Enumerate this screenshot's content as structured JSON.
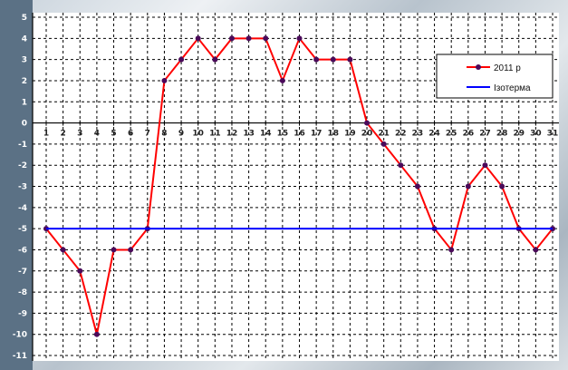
{
  "chart_data": {
    "type": "line",
    "title": "",
    "xlabel": "",
    "ylabel": "",
    "categories": [
      "1",
      "2",
      "3",
      "4",
      "5",
      "6",
      "7",
      "8",
      "9",
      "10",
      "11",
      "12",
      "13",
      "14",
      "15",
      "16",
      "17",
      "18",
      "19",
      "20",
      "21",
      "22",
      "23",
      "24",
      "25",
      "26",
      "27",
      "28",
      "29",
      "30",
      "31"
    ],
    "ylim": [
      -11,
      5
    ],
    "yticks": [
      -11,
      -10,
      -9,
      -8,
      -7,
      -6,
      -5,
      -4,
      -3,
      -2,
      -1,
      0,
      1,
      2,
      3,
      4,
      5
    ],
    "grid": true,
    "legend_position": "top-right",
    "series": [
      {
        "name": "2011 р",
        "color": "#ff0000",
        "marker_color": "#4b0a5a",
        "values": [
          -5,
          -6,
          -7,
          -10,
          -6,
          -6,
          -5,
          2,
          3,
          4,
          3,
          4,
          4,
          4,
          2,
          4,
          3,
          3,
          3,
          0,
          -1,
          -2,
          -3,
          -5,
          -6,
          -3,
          -2,
          -3,
          -5,
          -6,
          -5
        ]
      },
      {
        "name": "Ізотерма",
        "color": "#0000ff",
        "values": [
          -5,
          -5,
          -5,
          -5,
          -5,
          -5,
          -5,
          -5,
          -5,
          -5,
          -5,
          -5,
          -5,
          -5,
          -5,
          -5,
          -5,
          -5,
          -5,
          -5,
          -5,
          -5,
          -5,
          -5,
          -5,
          -5,
          -5,
          -5,
          -5,
          -5,
          -5
        ]
      }
    ]
  }
}
